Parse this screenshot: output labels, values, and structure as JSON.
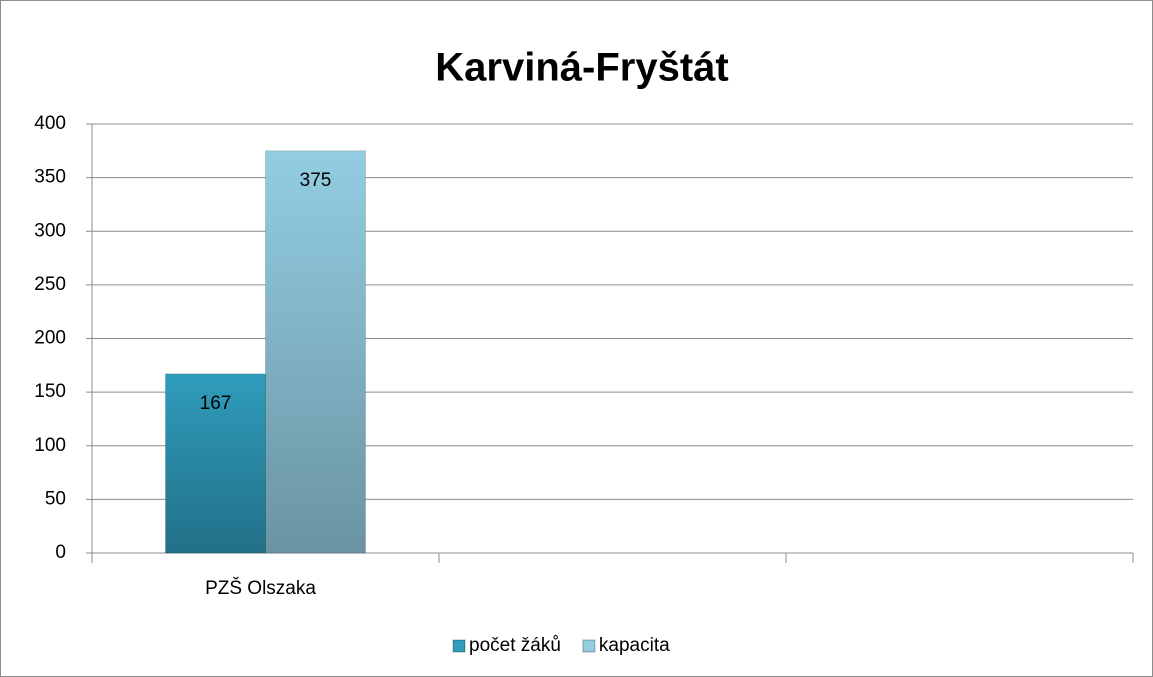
{
  "chart_data": {
    "type": "bar",
    "title": "Karviná-Fryštát",
    "categories": [
      "PZŠ Olszaka",
      null,
      null
    ],
    "series": [
      {
        "name": "počet žáků",
        "color": "#2f9cbc",
        "values": [
          167,
          null,
          null
        ]
      },
      {
        "name": "kapacita",
        "color": "#93cde2",
        "values": [
          375,
          null,
          null
        ]
      }
    ],
    "ylim": [
      0,
      400
    ],
    "yticks": [
      0,
      50,
      100,
      150,
      200,
      250,
      300,
      350,
      400
    ],
    "grid": true,
    "legend": "bottom"
  }
}
